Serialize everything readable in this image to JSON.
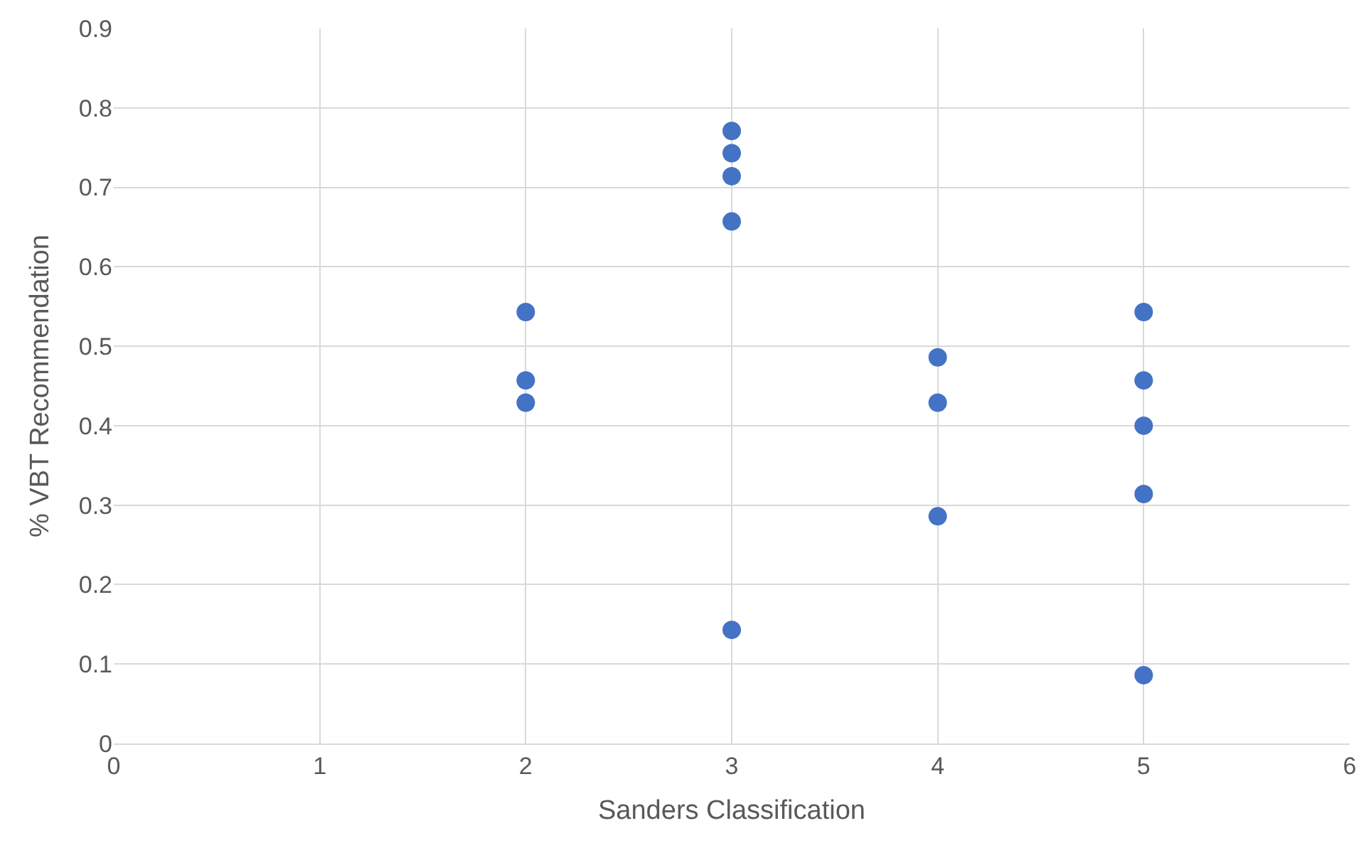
{
  "chart_data": {
    "type": "scatter",
    "xlabel": "Sanders Classification",
    "ylabel": "% VBT Recommendation",
    "x": [
      2,
      2,
      2,
      3,
      3,
      3,
      3,
      3,
      4,
      4,
      4,
      5,
      5,
      5,
      5,
      5
    ],
    "series": [
      {
        "color": "#4472c4",
        "values": [
          0.543,
          0.457,
          0.429,
          0.771,
          0.743,
          0.714,
          0.657,
          0.143,
          0.486,
          0.429,
          0.286,
          0.543,
          0.457,
          0.4,
          0.314,
          0.086
        ]
      }
    ],
    "xlim": [
      0,
      6
    ],
    "xticks": [
      0,
      1,
      2,
      3,
      4,
      5,
      6
    ],
    "ylim": [
      0,
      0.9
    ],
    "yticks": [
      {
        "value": 0,
        "label": "0"
      },
      0.1,
      0.2,
      0.3,
      0.4,
      0.5,
      0.6,
      0.7,
      0.8,
      0.9
    ],
    "grid": true,
    "marker": "circle"
  }
}
